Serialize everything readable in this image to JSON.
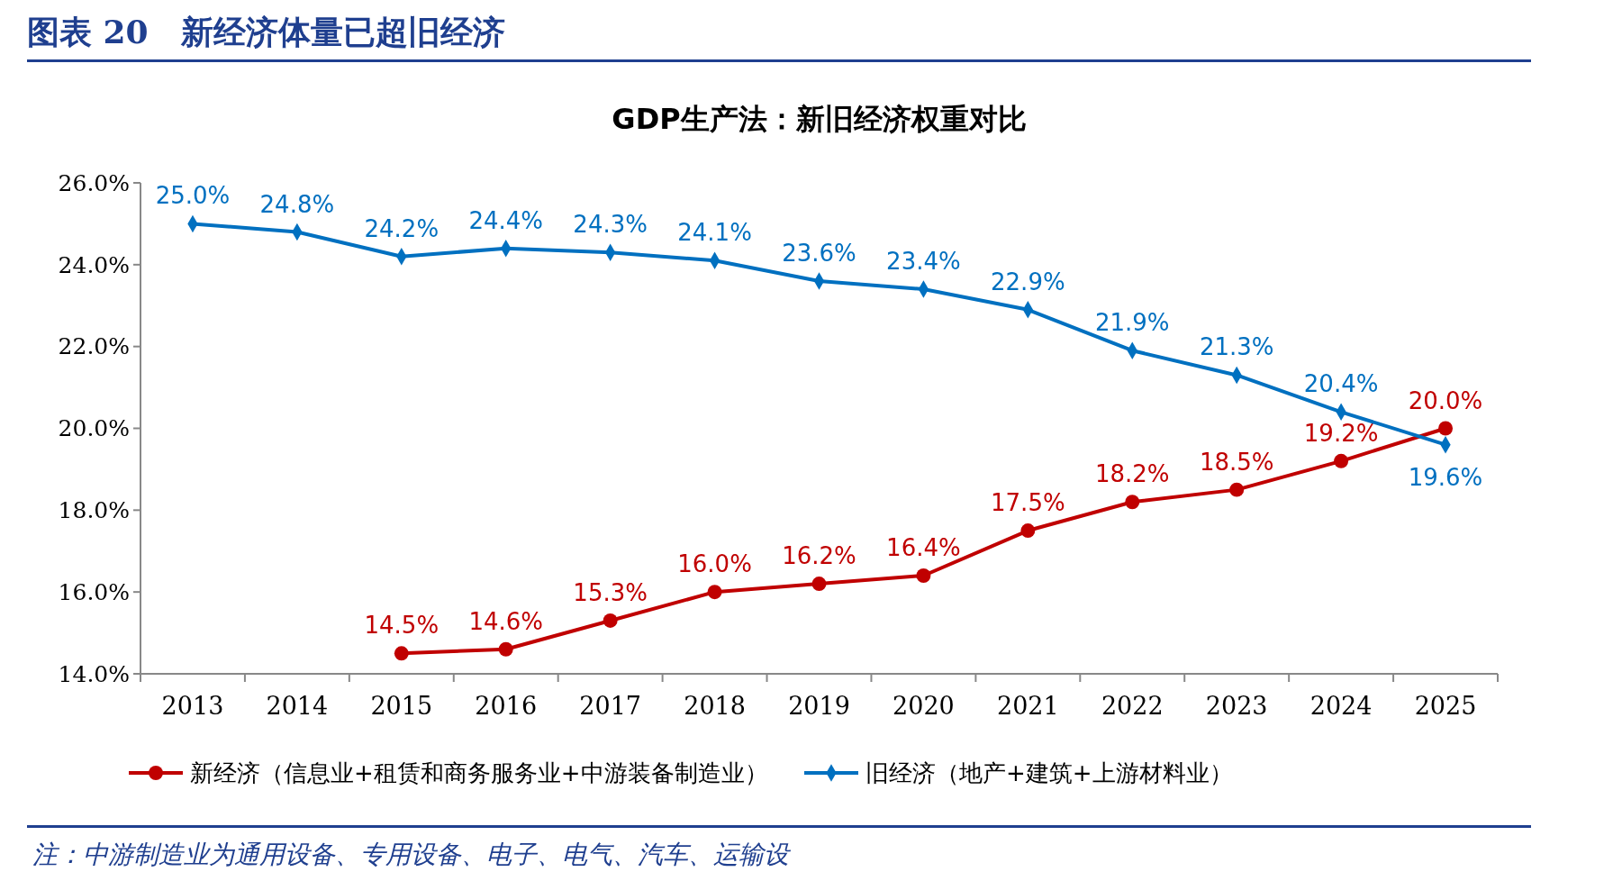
{
  "chart_data": {
    "type": "line",
    "title": "图表 20　新经济体量已超旧经济",
    "subtitle": "GDP生产法：新旧经济权重对比",
    "annotations": [
      "注：中游制造业为通用设备、专用设备、电子、电气、汽车、运输设"
    ],
    "categories": [
      "2013",
      "2014",
      "2015",
      "2016",
      "2017",
      "2018",
      "2019",
      "2020",
      "2021",
      "2022",
      "2023",
      "2024",
      "2025"
    ],
    "series": [
      {
        "name": "新经济（信息业+租赁和商务服务业+中游装备制造业）",
        "color": "#c00000",
        "marker": "circle",
        "values": [
          null,
          null,
          14.5,
          14.6,
          15.3,
          16.0,
          16.2,
          16.4,
          17.5,
          18.2,
          18.5,
          19.2,
          20.0
        ],
        "value_labels": [
          null,
          null,
          "14.5%",
          "14.6%",
          "15.3%",
          "16.0%",
          "16.2%",
          "16.4%",
          "17.5%",
          "18.2%",
          "18.5%",
          "19.2%",
          "20.0%"
        ]
      },
      {
        "name": "旧经济（地产+建筑+上游材料业）",
        "color": "#0070c0",
        "marker": "diamond",
        "values": [
          25.0,
          24.8,
          24.2,
          24.4,
          24.3,
          24.1,
          23.6,
          23.4,
          22.9,
          21.9,
          21.3,
          20.4,
          19.6
        ],
        "value_labels": [
          "25.0%",
          "24.8%",
          "24.2%",
          "24.4%",
          "24.3%",
          "24.1%",
          "23.6%",
          "23.4%",
          "22.9%",
          "21.9%",
          "21.3%",
          "20.4%",
          "19.6%"
        ]
      }
    ],
    "ylim": [
      14,
      26
    ],
    "yticks": [
      {
        "value": 14,
        "label": "14.0%"
      },
      {
        "value": 16,
        "label": "16.0%"
      },
      {
        "value": 18,
        "label": "18.0%"
      },
      {
        "value": 20,
        "label": "20.0%"
      },
      {
        "value": 22,
        "label": "22.0%"
      },
      {
        "value": 24,
        "label": "24.0%"
      },
      {
        "value": 26,
        "label": "26.0%"
      }
    ],
    "legend": "bottom",
    "grid": false,
    "line_style": "solid"
  }
}
